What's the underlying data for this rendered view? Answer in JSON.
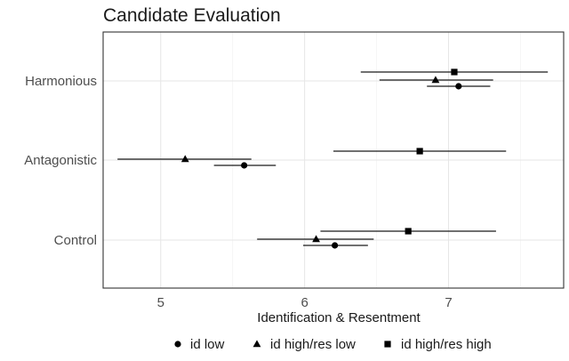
{
  "chart_data": {
    "type": "scatter",
    "title": "Candidate Evaluation",
    "xlabel": "Identification & Resentment",
    "ylabel": "",
    "xlim": [
      4.6,
      7.8
    ],
    "xticks": [
      5,
      6,
      7
    ],
    "xtick_labels": [
      "5",
      "6",
      "7"
    ],
    "categories": [
      "Harmonious",
      "Antagonistic",
      "Control"
    ],
    "grid": true,
    "legend_position": "bottom",
    "series": [
      {
        "name": "id low",
        "marker": "circle",
        "points": [
          {
            "category": "Harmonious",
            "estimate": 7.07,
            "low": 6.85,
            "high": 7.29
          },
          {
            "category": "Antagonistic",
            "estimate": 5.58,
            "low": 5.37,
            "high": 5.8
          },
          {
            "category": "Control",
            "estimate": 6.21,
            "low": 5.99,
            "high": 6.44
          }
        ]
      },
      {
        "name": "id high/res low",
        "marker": "triangle",
        "points": [
          {
            "category": "Harmonious",
            "estimate": 6.91,
            "low": 6.52,
            "high": 7.31
          },
          {
            "category": "Antagonistic",
            "estimate": 5.17,
            "low": 4.7,
            "high": 5.63
          },
          {
            "category": "Control",
            "estimate": 6.08,
            "low": 5.67,
            "high": 6.48
          }
        ]
      },
      {
        "name": "id high/res high",
        "marker": "square",
        "points": [
          {
            "category": "Harmonious",
            "estimate": 7.04,
            "low": 6.39,
            "high": 7.69
          },
          {
            "category": "Antagonistic",
            "estimate": 6.8,
            "low": 6.2,
            "high": 7.4
          },
          {
            "category": "Control",
            "estimate": 6.72,
            "low": 6.11,
            "high": 7.33
          }
        ]
      }
    ]
  }
}
